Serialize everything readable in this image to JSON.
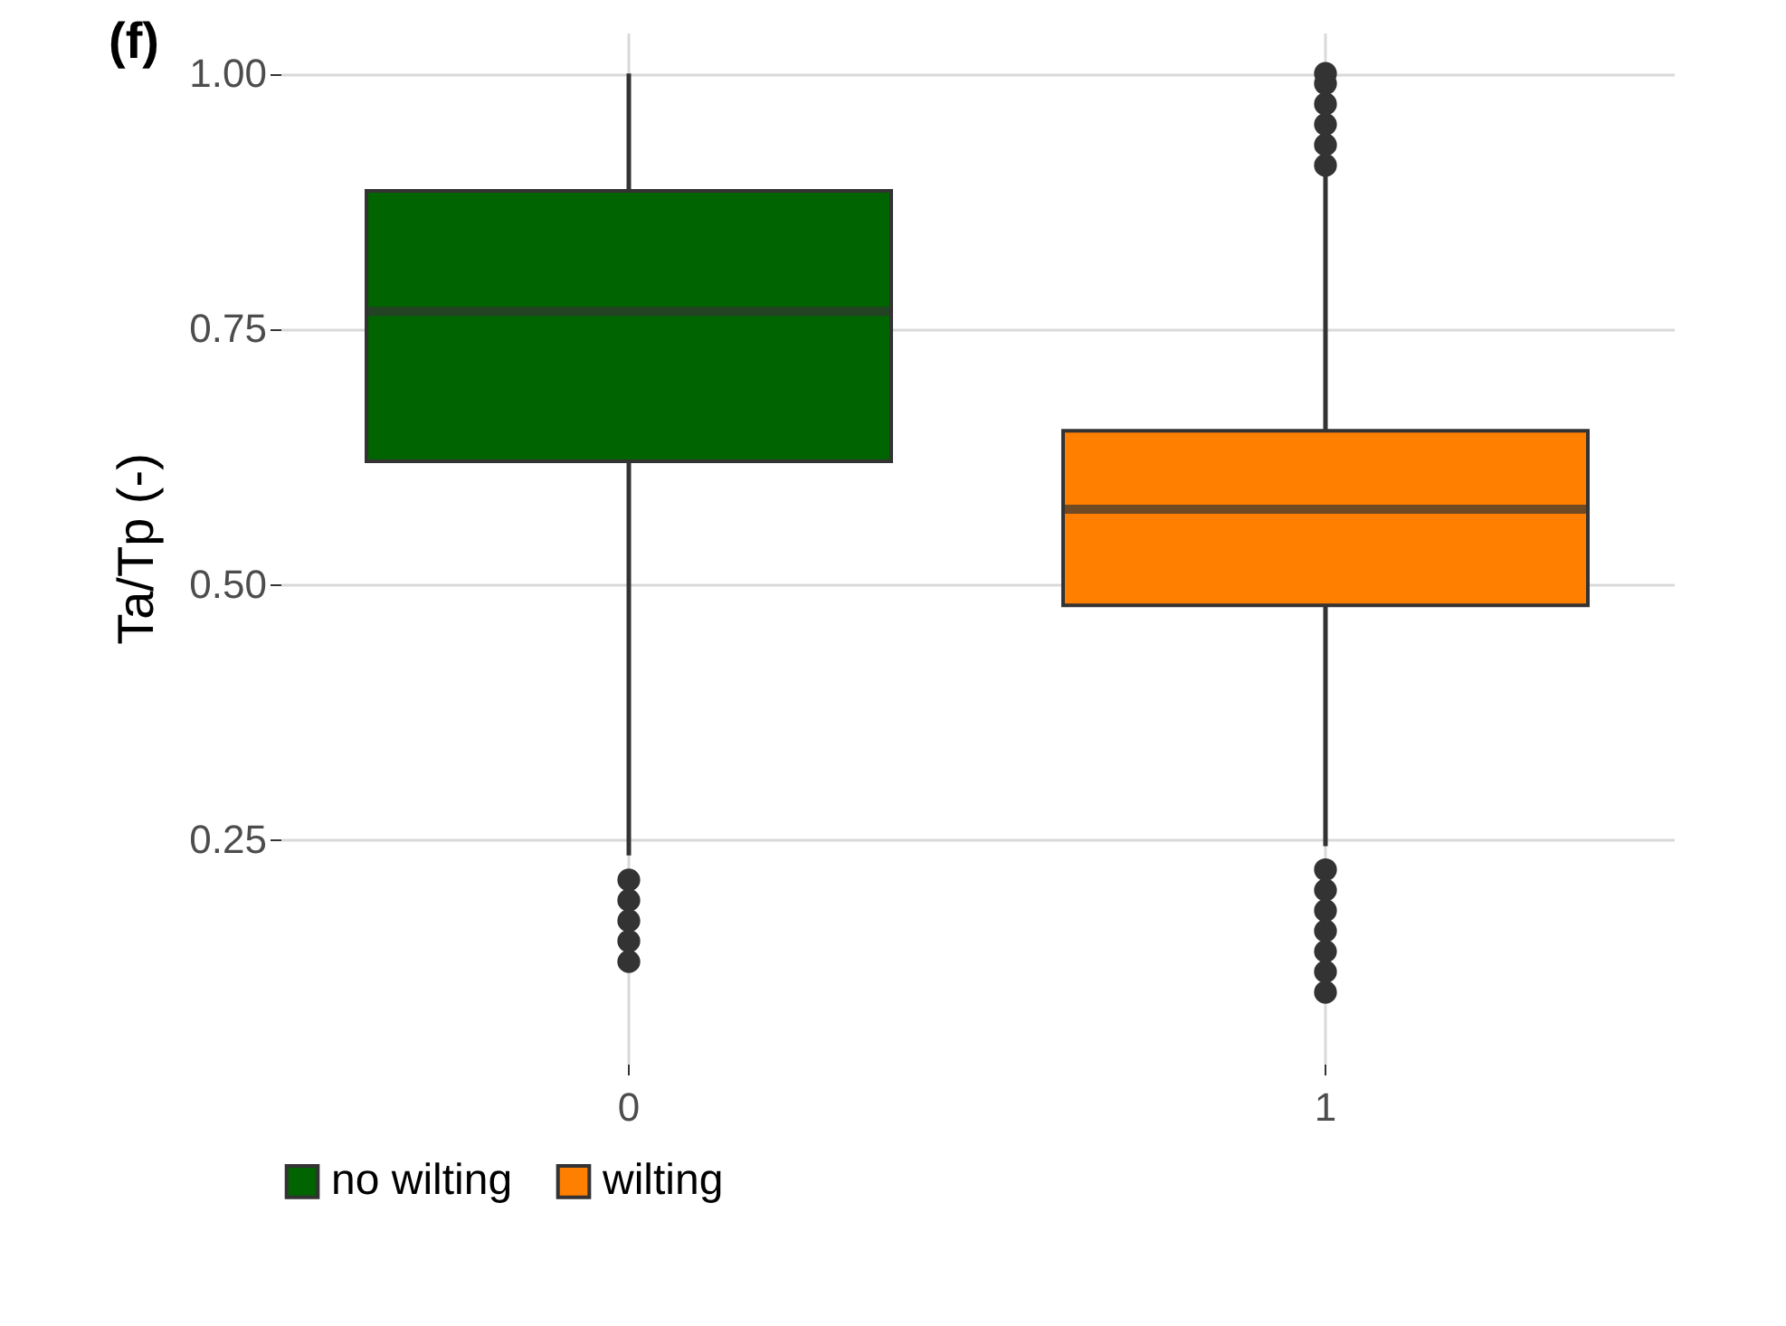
{
  "chart_data": {
    "type": "box",
    "title": "(f)",
    "ylabel": "Ta/Tp (-)",
    "categories": [
      "0",
      "1"
    ],
    "series": [
      {
        "name": "no wilting",
        "color": "#006400",
        "boxes": [
          {
            "low": 0.234,
            "q1": 0.62,
            "median": 0.767,
            "q3": 0.885,
            "high": 1.0,
            "outliers": [
              0.13,
              0.15,
              0.17,
              0.19,
              0.21
            ]
          },
          null
        ]
      },
      {
        "name": "wilting",
        "color": "#ff7f00",
        "boxes": [
          null,
          {
            "low": 0.243,
            "q1": 0.479,
            "median": 0.573,
            "q3": 0.65,
            "high": 0.9,
            "outliers": [
              0.1,
              0.12,
              0.14,
              0.16,
              0.18,
              0.2,
              0.22,
              0.91,
              0.93,
              0.95,
              0.97,
              0.99,
              1.0
            ]
          }
        ]
      }
    ],
    "ylim": [
      0.03,
      1.04
    ],
    "yticks": [
      {
        "value": 0.25,
        "label": "0.25"
      },
      {
        "value": 0.5,
        "label": "0.50"
      },
      {
        "value": 0.75,
        "label": "0.75"
      },
      {
        "value": 1,
        "label": "1.00"
      }
    ],
    "grid": true,
    "legend": "bottom"
  }
}
